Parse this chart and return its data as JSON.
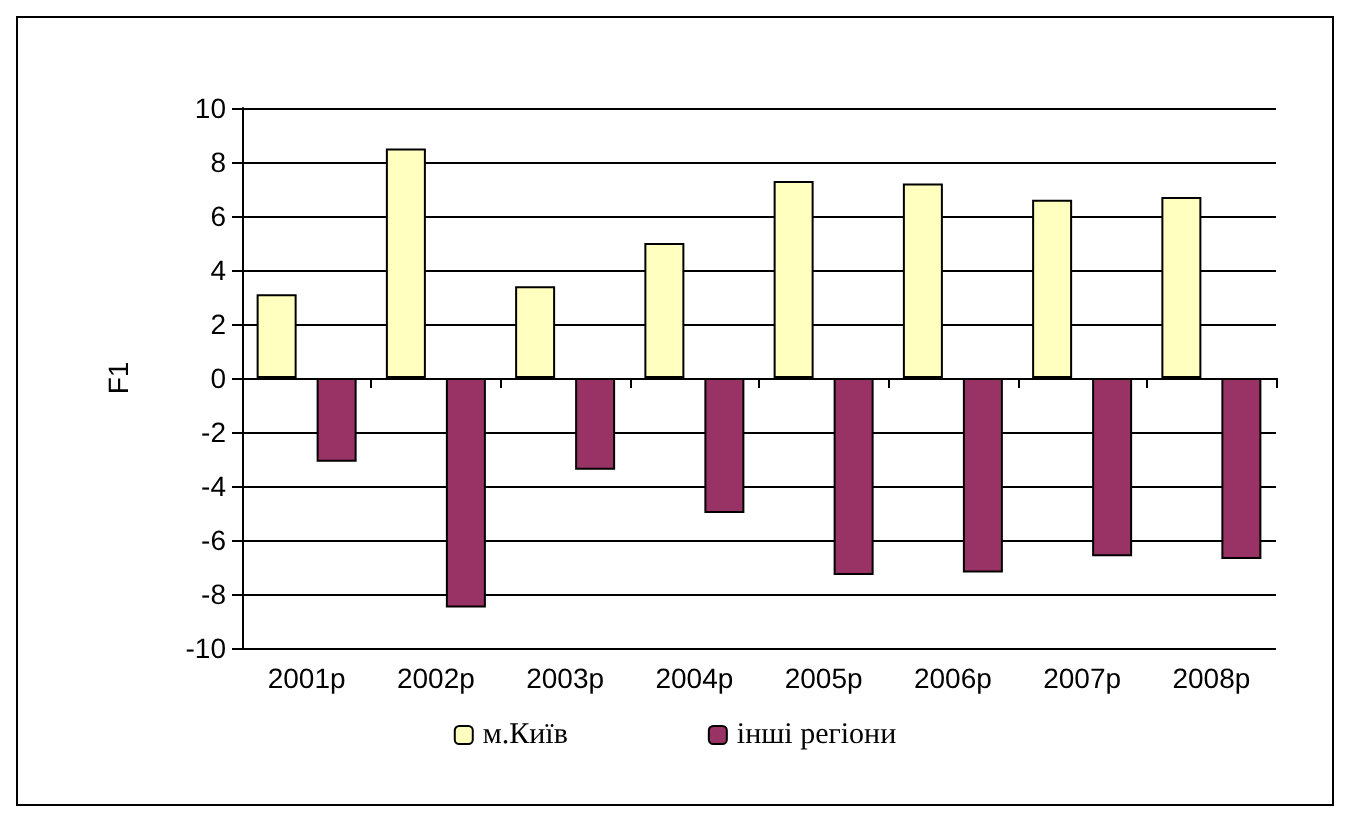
{
  "chart_data": {
    "type": "bar",
    "ylabel": "F1",
    "categories": [
      "2001р",
      "2002р",
      "2003р",
      "2004р",
      "2005р",
      "2006р",
      "2007р",
      "2008р"
    ],
    "series": [
      {
        "name": "м.Київ",
        "color": "#ffffc0",
        "values": [
          3.1,
          8.5,
          3.4,
          5.0,
          7.3,
          7.2,
          6.6,
          6.7
        ]
      },
      {
        "name": "інші регіони",
        "color": "#993366",
        "values": [
          -3.1,
          -8.5,
          -3.4,
          -5.0,
          -7.3,
          -7.2,
          -6.6,
          -6.7
        ]
      }
    ],
    "ylim": [
      -10,
      10
    ],
    "yticks": [
      -10,
      -8,
      -6,
      -4,
      -2,
      0,
      2,
      4,
      6,
      8,
      10
    ],
    "grid": "y",
    "legend": "bottom"
  }
}
